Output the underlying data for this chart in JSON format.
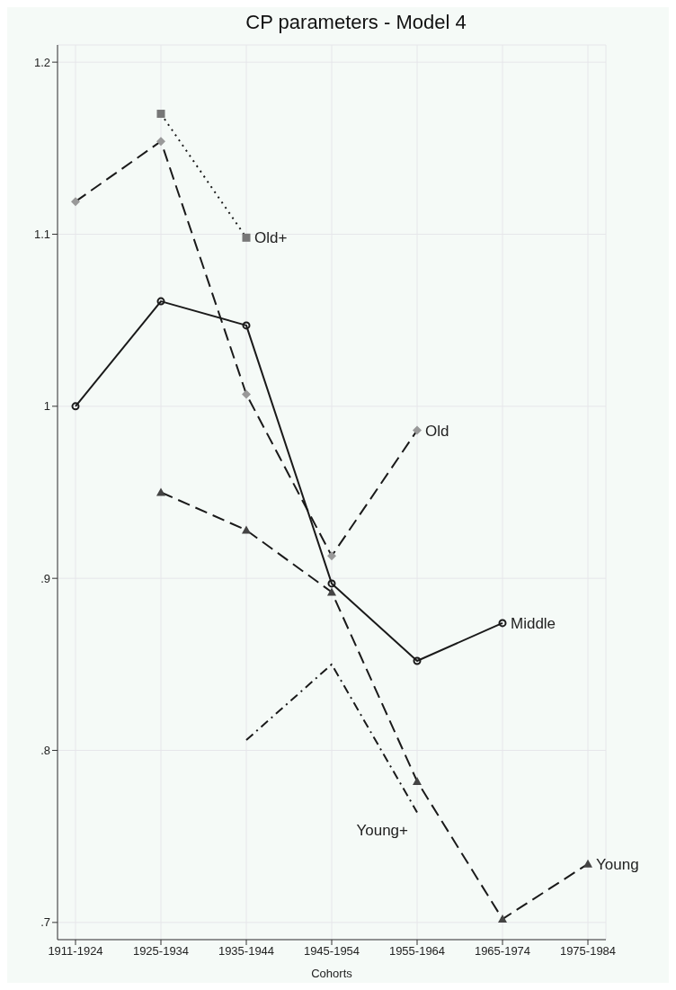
{
  "chart_data": {
    "type": "line",
    "title": "CP parameters - Model 4",
    "xlabel": "Cohorts",
    "categories": [
      "1911-1924",
      "1925-1934",
      "1935-1944",
      "1945-1954",
      "1955-1964",
      "1965-1974",
      "1975-1984"
    ],
    "ylim": [
      0.69,
      1.21
    ],
    "yticks": [
      {
        "value": 0.7,
        "label": ".7"
      },
      {
        "value": 0.8,
        "label": ".8"
      },
      {
        "value": 0.9,
        "label": ".9"
      },
      1,
      1.1,
      1.2
    ],
    "grid": true,
    "series": [
      {
        "name": "Middle",
        "color": "#1a1a1a",
        "marker": "circle",
        "line_style": "solid",
        "values": [
          1.0,
          1.061,
          1.047,
          0.897,
          0.852,
          0.874,
          null
        ]
      },
      {
        "name": "Old",
        "color": "#999999",
        "marker": "diamond",
        "line_style": "dashed",
        "values": [
          1.119,
          1.154,
          1.007,
          0.913,
          0.986,
          null,
          null
        ]
      },
      {
        "name": "Old+",
        "color": "#777777",
        "marker": "square",
        "line_style": "dotted",
        "values": [
          null,
          1.17,
          1.098,
          null,
          null,
          null,
          null
        ]
      },
      {
        "name": "Young",
        "color": "#444444",
        "marker": "triangle",
        "line_style": "dashed",
        "values": [
          null,
          0.95,
          0.928,
          0.892,
          0.782,
          0.702,
          0.734
        ]
      },
      {
        "name": "Young+",
        "color": "#1a1a1a",
        "marker": "none",
        "line_style": "dashdot",
        "values": [
          null,
          null,
          0.806,
          0.85,
          0.764,
          null,
          null
        ]
      }
    ]
  }
}
